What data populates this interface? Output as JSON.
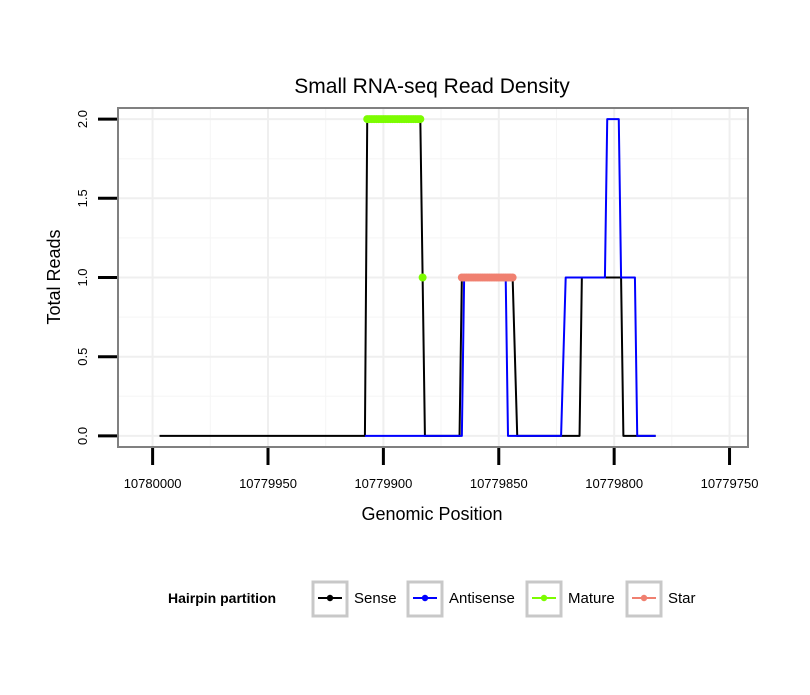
{
  "chart_data": {
    "type": "line",
    "title": "Small RNA-seq Read Density",
    "xlabel": "Genomic Position",
    "ylabel": "Total Reads",
    "xlim": [
      10780015,
      10779742
    ],
    "ylim": [
      -0.07,
      2.07
    ],
    "x_reversed": true,
    "x_ticks": [
      10780000,
      10779950,
      10779900,
      10779850,
      10779800,
      10779750
    ],
    "y_ticks": [
      0.0,
      0.5,
      1.0,
      1.5,
      2.0
    ],
    "y_tick_labels": [
      "0.0",
      "0.5",
      "1.0",
      "1.5",
      "2.0"
    ],
    "grid": true,
    "legend": {
      "title": "Hairpin partition",
      "position": "bottom",
      "entries": [
        {
          "label": "Sense",
          "color": "#000000"
        },
        {
          "label": "Antisense",
          "color": "#0000ff"
        },
        {
          "label": "Mature",
          "color": "#7cfc00"
        },
        {
          "label": "Star",
          "color": "#f08070"
        }
      ]
    },
    "series": [
      {
        "name": "Sense",
        "color": "#000000",
        "kind": "line",
        "x": [
          10779997,
          10779908,
          10779907,
          10779884,
          10779882,
          10779867,
          10779866,
          10779844,
          10779842,
          10779815,
          10779814,
          10779797,
          10779796,
          10779782
        ],
        "y": [
          0,
          0,
          2,
          2,
          0,
          0,
          1,
          1,
          0,
          0,
          1,
          1,
          0,
          0
        ]
      },
      {
        "name": "Antisense",
        "color": "#0000ff",
        "kind": "line",
        "x": [
          10779908,
          10779866,
          10779865,
          10779847,
          10779846,
          10779823,
          10779821,
          10779804,
          10779803,
          10779798,
          10779797,
          10779791,
          10779790,
          10779782
        ],
        "y": [
          0,
          0,
          1,
          1,
          0,
          0,
          1,
          1,
          2,
          2,
          1,
          1,
          0,
          0
        ]
      },
      {
        "name": "Mature",
        "color": "#7cfc00",
        "kind": "points",
        "x": [
          10779907,
          10779906,
          10779905,
          10779904,
          10779903,
          10779902,
          10779901,
          10779900,
          10779899,
          10779898,
          10779897,
          10779896,
          10779895,
          10779894,
          10779893,
          10779892,
          10779891,
          10779890,
          10779889,
          10779888,
          10779887,
          10779886,
          10779885,
          10779884,
          10779883
        ],
        "y": [
          2,
          2,
          2,
          2,
          2,
          2,
          2,
          2,
          2,
          2,
          2,
          2,
          2,
          2,
          2,
          2,
          2,
          2,
          2,
          2,
          2,
          2,
          2,
          2,
          1
        ]
      },
      {
        "name": "Star",
        "color": "#f08070",
        "kind": "points",
        "x": [
          10779866,
          10779865,
          10779864,
          10779863,
          10779862,
          10779861,
          10779860,
          10779859,
          10779858,
          10779857,
          10779856,
          10779855,
          10779854,
          10779853,
          10779852,
          10779851,
          10779850,
          10779849,
          10779848,
          10779847,
          10779846,
          10779845,
          10779844
        ],
        "y": [
          1,
          1,
          1,
          1,
          1,
          1,
          1,
          1,
          1,
          1,
          1,
          1,
          1,
          1,
          1,
          1,
          1,
          1,
          1,
          1,
          1,
          1,
          1
        ]
      }
    ]
  }
}
